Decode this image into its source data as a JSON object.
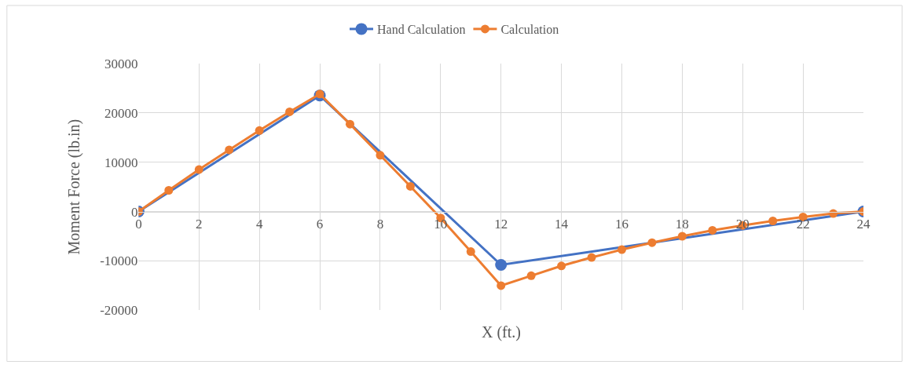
{
  "chart_data": {
    "type": "line",
    "xlabel": "X (ft.)",
    "ylabel": "Moment Force (lb.in)",
    "xlim": [
      0,
      24
    ],
    "xticks": [
      0,
      2,
      4,
      6,
      8,
      10,
      12,
      14,
      16,
      18,
      20,
      22,
      24
    ],
    "ylim": [
      -20000,
      30000
    ],
    "yticks": [
      -20000,
      -10000,
      0,
      10000,
      20000,
      30000
    ],
    "grid": true,
    "legend": "top",
    "marker": "circle",
    "line_style": "solid",
    "series": [
      {
        "name": "Hand Calculation",
        "color": "#4472c4",
        "x": [
          0,
          6,
          12,
          24
        ],
        "values": [
          0,
          23500,
          -10800,
          0
        ]
      },
      {
        "name": "Calculation",
        "color": "#ed7d31",
        "x": [
          0,
          1,
          2,
          3,
          4,
          5,
          6,
          7,
          8,
          9,
          10,
          11,
          12,
          13,
          14,
          15,
          16,
          17,
          18,
          19,
          20,
          21,
          22,
          23,
          24
        ],
        "values": [
          0,
          4300,
          8500,
          12500,
          16400,
          20200,
          23800,
          17700,
          11400,
          5100,
          -1300,
          -8100,
          -15000,
          -13000,
          -11000,
          -9300,
          -7700,
          -6300,
          -5000,
          -3800,
          -2800,
          -1900,
          -1100,
          -400,
          0
        ]
      }
    ]
  }
}
